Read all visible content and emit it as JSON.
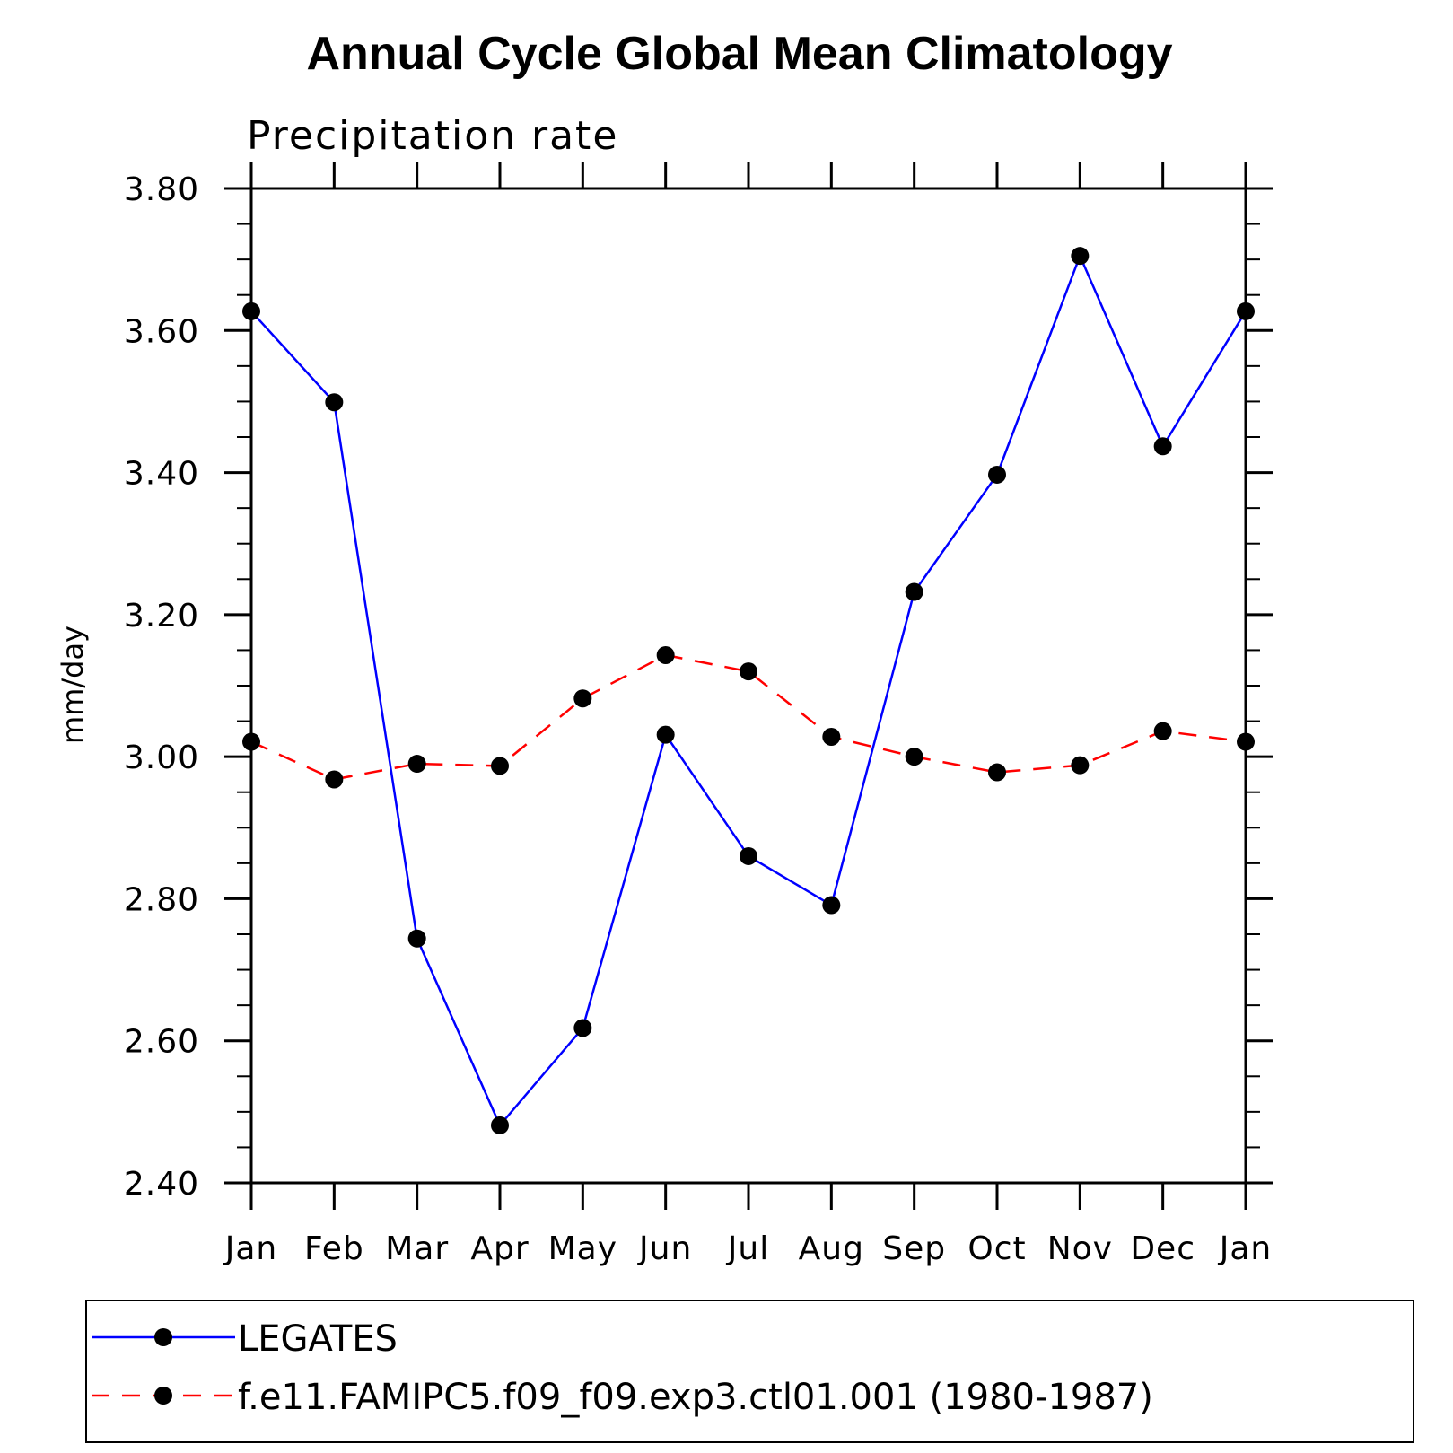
{
  "chart_data": {
    "type": "line",
    "title": "Annual Cycle Global Mean Climatology",
    "subtitle": "Precipitation rate",
    "ylabel": "mm/day",
    "xlabel": "",
    "categories": [
      "Jan",
      "Feb",
      "Mar",
      "Apr",
      "May",
      "Jun",
      "Jul",
      "Aug",
      "Sep",
      "Oct",
      "Nov",
      "Dec",
      "Jan"
    ],
    "ylim": [
      2.4,
      3.8
    ],
    "yticks": [
      "2.40",
      "2.60",
      "2.80",
      "3.00",
      "3.20",
      "3.40",
      "3.60",
      "3.80"
    ],
    "yticks_values": [
      2.4,
      2.6,
      2.8,
      3.0,
      3.2,
      3.4,
      3.6,
      3.8
    ],
    "grid": false,
    "legend_position": "bottom",
    "series": [
      {
        "name": "LEGATES",
        "color": "#0000ff",
        "dash": "solid",
        "marker": "circle",
        "values": [
          3.627,
          3.499,
          2.744,
          2.481,
          2.618,
          3.031,
          2.86,
          2.791,
          3.232,
          3.397,
          3.705,
          3.437,
          3.627
        ]
      },
      {
        "name": "f.e11.FAMIPC5.f09_f09.exp3.ctl01.001 (1980-1987)",
        "color": "#ff0000",
        "dash": "dashed",
        "marker": "circle",
        "values": [
          3.021,
          2.968,
          2.99,
          2.987,
          3.082,
          3.143,
          3.12,
          3.028,
          3.0,
          2.978,
          2.988,
          3.036,
          3.021
        ]
      }
    ]
  }
}
